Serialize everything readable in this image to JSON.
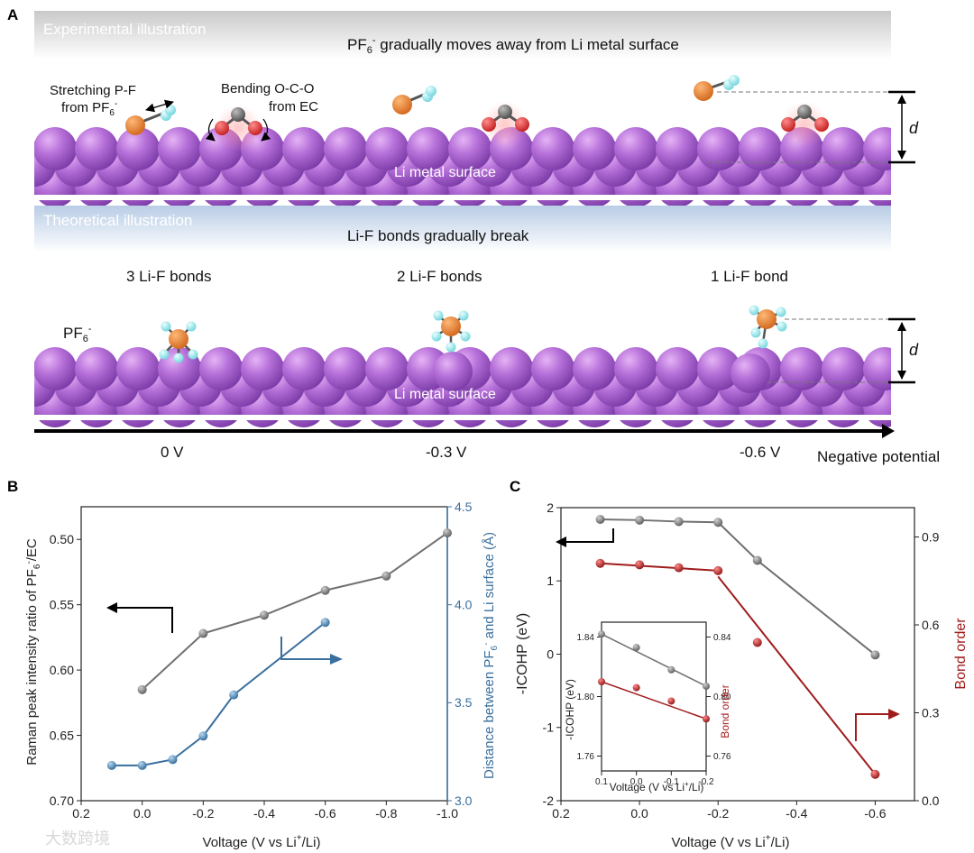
{
  "panel_a": {
    "letter": "A",
    "exp": {
      "label": "Experimental illustration",
      "headline_main": "PF",
      "headline_sub": "6",
      "headline_sup": "-",
      "headline_rest": " gradually moves away from Li metal surface",
      "stretch_line1": "Stretching P-F",
      "stretch_line2_main": "from PF",
      "stretch_line2_sub": "6",
      "stretch_line2_sup": "-",
      "bend_line1": "Bending O-C-O",
      "bend_line2": "from EC",
      "surface": "Li metal surface",
      "d": "d"
    },
    "theo": {
      "label": "Theoretical illustration",
      "headline": "Li-F bonds gradually break",
      "bonds": [
        "3 Li-F bonds",
        "2 Li-F bonds",
        "1 Li-F bond"
      ],
      "pf6_main": "PF",
      "pf6_sub": "6",
      "pf6_sup": "-",
      "surface": "Li metal surface",
      "d": "d"
    },
    "potentials": [
      "0 V",
      "-0.3 V",
      "-0.6 V"
    ],
    "axis_label": "Negative potential"
  },
  "watermark": "大数跨境",
  "chart_data": [
    {
      "id": "B",
      "type": "line",
      "letter": "B",
      "xlabel": "Voltage (V vs Li+/Li)",
      "xlim": [
        0.2,
        -1.0
      ],
      "xticks": [
        0.2,
        0.0,
        -0.2,
        -0.4,
        -0.6,
        -0.8,
        -1.0
      ],
      "xtick_labels": [
        "0.2",
        "0.0",
        "-0.2",
        "-0.4",
        "-0.6",
        "-0.8",
        "-1.0"
      ],
      "y_left": {
        "label": "Raman peak intensity ratio of PF6-/EC",
        "lim": [
          0.7,
          0.475
        ],
        "ticks": [
          0.5,
          0.55,
          0.6,
          0.65,
          0.7
        ],
        "tick_labels": [
          "0.50",
          "0.55",
          "0.60",
          "0.65",
          "0.70"
        ],
        "color": "#333333"
      },
      "y_right": {
        "label": "Distance between PF6- and Li surface (Å)",
        "lim": [
          3.0,
          4.5
        ],
        "ticks": [
          3.0,
          3.5,
          4.0,
          4.5
        ],
        "tick_labels": [
          "3.0",
          "3.5",
          "4.0",
          "4.5"
        ],
        "color": "#3a6f9e"
      },
      "series": [
        {
          "name": "Raman peak intensity ratio",
          "axis": "left",
          "color": "#707070",
          "x": [
            0.0,
            -0.2,
            -0.4,
            -0.6,
            -0.8,
            -1.0
          ],
          "y": [
            0.615,
            0.572,
            0.558,
            0.539,
            0.528,
            0.495
          ]
        },
        {
          "name": "Distance PF6- to Li surface",
          "axis": "right",
          "color": "#3a6f9e",
          "x": [
            0.1,
            0.0,
            -0.1,
            -0.2,
            -0.3,
            -0.6
          ],
          "y": [
            3.18,
            3.18,
            3.21,
            3.33,
            3.54,
            3.91
          ]
        }
      ]
    },
    {
      "id": "C",
      "type": "line",
      "letter": "C",
      "xlabel": "Voltage (V vs Li+/Li)",
      "xlim": [
        0.2,
        -0.7
      ],
      "xticks": [
        0.2,
        0.0,
        -0.2,
        -0.4,
        -0.6
      ],
      "xtick_labels": [
        "0.2",
        "0.0",
        "-0.2",
        "-0.4",
        "-0.6"
      ],
      "y_left": {
        "label": "-ICOHP (eV)",
        "lim": [
          -2,
          2
        ],
        "ticks": [
          -2,
          -1,
          0,
          1,
          2
        ],
        "tick_labels": [
          "-2",
          "-1",
          "0",
          "1",
          "2"
        ],
        "color": "#333333"
      },
      "y_right": {
        "label": "Bond order",
        "lim": [
          0.0,
          1.0
        ],
        "ticks": [
          0.0,
          0.3,
          0.6,
          0.9
        ],
        "tick_labels": [
          "0.0",
          "0.3",
          "0.6",
          "0.9"
        ],
        "color": "#a01c1c"
      },
      "series": [
        {
          "name": "-ICOHP",
          "axis": "left",
          "color": "#707070",
          "x": [
            0.1,
            0.0,
            -0.1,
            -0.2,
            -0.3,
            -0.6
          ],
          "y": [
            1.84,
            1.83,
            1.81,
            1.8,
            1.28,
            -0.01
          ]
        },
        {
          "name": "Bond order",
          "axis": "right",
          "color": "#a01c1c",
          "x": [
            0.1,
            0.0,
            -0.1,
            -0.2,
            -0.3,
            -0.6
          ],
          "y": [
            0.81,
            0.805,
            0.795,
            0.785,
            0.54,
            0.09
          ],
          "fit": [
            [
              -0.2,
              0.765
            ],
            [
              -0.6,
              0.09
            ]
          ]
        }
      ],
      "inset": {
        "xlabel": "Voltage (V vs Li+/Li)",
        "xlim": [
          0.1,
          -0.2
        ],
        "xticks": [
          0.1,
          0.0,
          -0.1,
          -0.2
        ],
        "xtick_labels": [
          "0.1",
          "0.0",
          "-0.1",
          "-0.2"
        ],
        "y_left": {
          "label": "-ICOHP (eV)",
          "lim": [
            1.75,
            1.85
          ],
          "ticks": [
            1.76,
            1.8,
            1.84
          ],
          "tick_labels": [
            "1.76",
            "1.80",
            "1.84"
          ]
        },
        "y_right": {
          "label": "Bond order",
          "lim": [
            0.75,
            0.85
          ],
          "ticks": [
            0.76,
            0.8,
            0.84
          ],
          "tick_labels": [
            "0.76",
            "0.80",
            "0.84"
          ]
        },
        "series": [
          {
            "name": "-ICOHP",
            "axis": "left",
            "color": "#707070",
            "x": [
              0.1,
              0.0,
              -0.1,
              -0.2
            ],
            "y": [
              1.842,
              1.833,
              1.818,
              1.807
            ]
          },
          {
            "name": "Bond order",
            "axis": "right",
            "color": "#a01c1c",
            "x": [
              0.1,
              0.0,
              -0.1,
              -0.2
            ],
            "y": [
              0.81,
              0.806,
              0.797,
              0.785
            ]
          }
        ]
      }
    }
  ]
}
